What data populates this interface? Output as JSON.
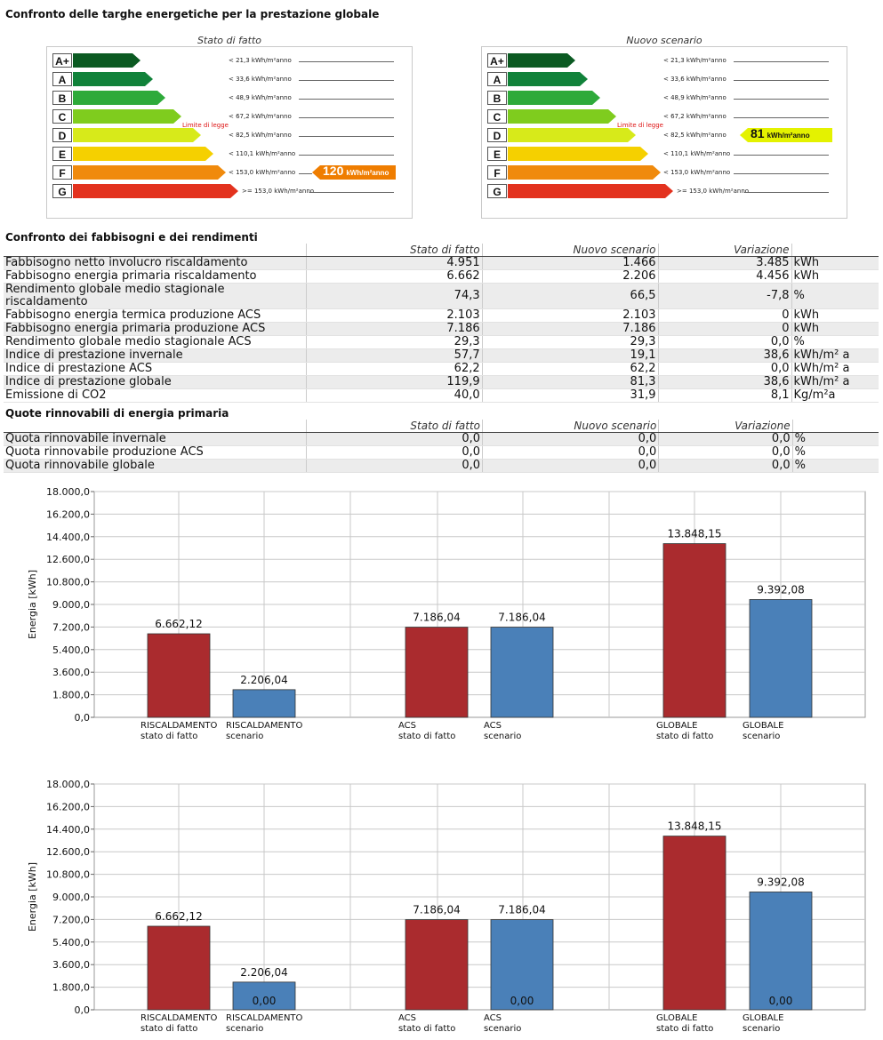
{
  "header": {
    "title": "Confronto delle targhe energetiche per la prestazione globale"
  },
  "labels": {
    "classes": [
      "A+",
      "A",
      "B",
      "C",
      "D",
      "E",
      "F",
      "G"
    ],
    "class_colors": [
      "#0b5a22",
      "#11823a",
      "#2eaa3a",
      "#7fcc1e",
      "#d7ea1a",
      "#f5d000",
      "#f08a0c",
      "#e3321e"
    ],
    "thresholds": [
      "< 21,3 kWh/m²anno",
      "< 33,6 kWh/m²anno",
      "< 48,9 kWh/m²anno",
      "< 67,2 kWh/m²anno",
      "< 82,5 kWh/m²anno",
      "< 110,1 kWh/m²anno",
      "< 153,0 kWh/m²anno",
      ">= 153,0 kWh/m²anno"
    ],
    "limit_label": "Limite di legge",
    "unit": "kWh/m²anno",
    "panels": [
      {
        "caption": "Stato di fatto",
        "value": 120,
        "value_label": "120",
        "class_index": 6,
        "indicator_color": "#ef7d00"
      },
      {
        "caption": "Nuovo scenario",
        "value": 81,
        "value_label": "81",
        "class_index": 4,
        "indicator_color": "#e4f200"
      }
    ]
  },
  "needs": {
    "title": "Confronto dei fabbisogni e dei rendimenti",
    "columns": [
      "",
      "Stato di fatto",
      "Nuovo scenario",
      "Variazione",
      ""
    ],
    "rows": [
      [
        "Fabbisogno netto involucro riscaldamento",
        "4.951",
        "1.466",
        "3.485",
        "kWh"
      ],
      [
        "Fabbisogno energia primaria riscaldamento",
        "6.662",
        "2.206",
        "4.456",
        "kWh"
      ],
      [
        "Rendimento globale medio stagionale riscaldamento",
        "74,3",
        "66,5",
        "-7,8",
        "%"
      ],
      [
        "Fabbisogno energia termica produzione ACS",
        "2.103",
        "2.103",
        "0",
        "kWh"
      ],
      [
        "Fabbisogno energia primaria produzione ACS",
        "7.186",
        "7.186",
        "0",
        "kWh"
      ],
      [
        "Rendimento globale medio stagionale ACS",
        "29,3",
        "29,3",
        "0,0",
        "%"
      ],
      [
        "Indice di prestazione invernale",
        "57,7",
        "19,1",
        "38,6",
        "kWh/m² a"
      ],
      [
        "Indice di prestazione ACS",
        "62,2",
        "62,2",
        "0,0",
        "kWh/m² a"
      ],
      [
        "Indice di prestazione globale",
        "119,9",
        "81,3",
        "38,6",
        "kWh/m² a"
      ],
      [
        "Emissione di CO2",
        "40,0",
        "31,9",
        "8,1",
        "Kg/m²a"
      ]
    ]
  },
  "renewables": {
    "title": "Quote rinnovabili di energia primaria",
    "columns": [
      "",
      "Stato di fatto",
      "Nuovo scenario",
      "Variazione",
      ""
    ],
    "rows": [
      [
        "Quota rinnovabile invernale",
        "0,0",
        "0,0",
        "0,0",
        "%"
      ],
      [
        "Quota rinnovabile produzione ACS",
        "0,0",
        "0,0",
        "0,0",
        "%"
      ],
      [
        "Quota rinnovabile globale",
        "0,0",
        "0,0",
        "0,0",
        "%"
      ]
    ]
  },
  "chart_data": [
    {
      "type": "bar",
      "ylabel": "Energia [kWh]",
      "ylim": [
        0,
        18000
      ],
      "yticks": [
        "0,0",
        "1.800,0",
        "3.600,0",
        "5.400,0",
        "7.200,0",
        "9.000,0",
        "10.800,0",
        "12.600,0",
        "14.400,0",
        "16.200,0",
        "18.000,0"
      ],
      "grid": true,
      "bars": [
        {
          "category": "RISCALDAMENTO",
          "sub": "stato di fatto",
          "value": 6662.12,
          "label": "6.662,12",
          "color": "#aa2b2e"
        },
        {
          "category": "RISCALDAMENTO",
          "sub": "scenario",
          "value": 2206.04,
          "label": "2.206,04",
          "color": "#4a80b8"
        },
        {
          "category": "ACS",
          "sub": "stato di fatto",
          "value": 7186.04,
          "label": "7.186,04",
          "color": "#aa2b2e"
        },
        {
          "category": "ACS",
          "sub": "scenario",
          "value": 7186.04,
          "label": "7.186,04",
          "color": "#4a80b8"
        },
        {
          "category": "GLOBALE",
          "sub": "stato di fatto",
          "value": 13848.15,
          "label": "13.848,15",
          "color": "#aa2b2e"
        },
        {
          "category": "GLOBALE",
          "sub": "scenario",
          "value": 9392.08,
          "label": "9.392,08",
          "color": "#4a80b8"
        }
      ]
    },
    {
      "type": "bar",
      "ylabel": "Energia [kWh]",
      "ylim": [
        0,
        18000
      ],
      "yticks": [
        "0,0",
        "1.800,0",
        "3.600,0",
        "5.400,0",
        "7.200,0",
        "9.000,0",
        "10.800,0",
        "12.600,0",
        "14.400,0",
        "16.200,0",
        "18.000,0"
      ],
      "grid": true,
      "bars": [
        {
          "category": "RISCALDAMENTO",
          "sub": "stato di fatto",
          "value": 6662.12,
          "label": "6.662,12",
          "color": "#aa2b2e"
        },
        {
          "category": "RISCALDAMENTO",
          "sub": "scenario",
          "value": 2206.04,
          "label": "2.206,04",
          "inner_label": "0,00",
          "color": "#4a80b8"
        },
        {
          "category": "ACS",
          "sub": "stato di fatto",
          "value": 7186.04,
          "label": "7.186,04",
          "color": "#aa2b2e"
        },
        {
          "category": "ACS",
          "sub": "scenario",
          "value": 7186.04,
          "label": "7.186,04",
          "inner_label": "0,00",
          "color": "#4a80b8"
        },
        {
          "category": "GLOBALE",
          "sub": "stato di fatto",
          "value": 13848.15,
          "label": "13.848,15",
          "color": "#aa2b2e"
        },
        {
          "category": "GLOBALE",
          "sub": "scenario",
          "value": 9392.08,
          "label": "9.392,08",
          "inner_label": "0,00",
          "color": "#4a80b8"
        }
      ]
    }
  ]
}
